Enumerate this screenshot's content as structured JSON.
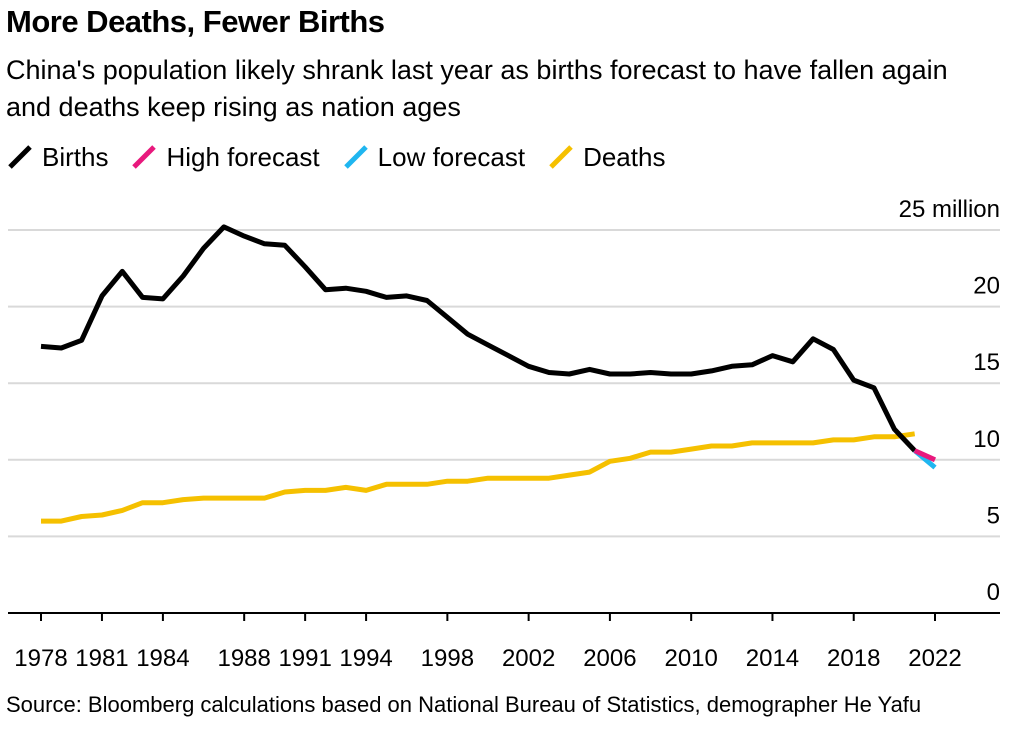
{
  "title": "More Deaths, Fewer Births",
  "subtitle": "China's population likely shrank last year as births forecast to have fallen again and deaths keep rising as nation ages",
  "source": "Source: Bloomberg calculations based on National Bureau of Statistics, demographer He Yafu",
  "legend": [
    {
      "label": "Births",
      "color": "#000000"
    },
    {
      "label": "High forecast",
      "color": "#e8197d"
    },
    {
      "label": "Low forecast",
      "color": "#1fb6f0"
    },
    {
      "label": "Deaths",
      "color": "#f5c000"
    }
  ],
  "chart_data": {
    "type": "line",
    "title": "More Deaths, Fewer Births",
    "ylabel": "",
    "xlabel": "",
    "ylim": [
      0,
      25
    ],
    "xlim": [
      1978,
      2022
    ],
    "y_ticks": [
      0,
      5,
      10,
      15,
      20,
      25
    ],
    "y_tick_labels": [
      "0",
      "5",
      "10",
      "15",
      "20",
      "25 million"
    ],
    "x_ticks": [
      1978,
      1981,
      1984,
      1988,
      1991,
      1994,
      1998,
      2002,
      2006,
      2010,
      2014,
      2018,
      2022
    ],
    "x_tick_labels": [
      "1978",
      "1981",
      "1984",
      "1988",
      "1991",
      "1994",
      "1998",
      "2002",
      "2006",
      "2010",
      "2014",
      "2018",
      "2022"
    ],
    "grid": "horizontal",
    "legend_position": "top-left",
    "series": [
      {
        "name": "Births",
        "color": "#000000",
        "x": [
          1978,
          1979,
          1980,
          1981,
          1982,
          1983,
          1984,
          1985,
          1986,
          1987,
          1988,
          1989,
          1990,
          1991,
          1992,
          1993,
          1994,
          1995,
          1996,
          1997,
          1998,
          1999,
          2000,
          2001,
          2002,
          2003,
          2004,
          2005,
          2006,
          2007,
          2008,
          2009,
          2010,
          2011,
          2012,
          2013,
          2014,
          2015,
          2016,
          2017,
          2018,
          2019,
          2020,
          2021
        ],
        "values": [
          17.4,
          17.3,
          17.8,
          20.7,
          22.3,
          20.6,
          20.5,
          22.0,
          23.8,
          25.2,
          24.6,
          24.1,
          24.0,
          22.6,
          21.1,
          21.2,
          21.0,
          20.6,
          20.7,
          20.4,
          19.3,
          18.2,
          17.5,
          16.8,
          16.1,
          15.7,
          15.6,
          15.9,
          15.6,
          15.6,
          15.7,
          15.6,
          15.6,
          15.8,
          16.1,
          16.2,
          16.8,
          16.4,
          17.9,
          17.2,
          15.2,
          14.7,
          12.0,
          10.6
        ]
      },
      {
        "name": "High forecast",
        "color": "#e8197d",
        "x": [
          2021,
          2022
        ],
        "values": [
          10.6,
          10.0
        ]
      },
      {
        "name": "Low forecast",
        "color": "#1fb6f0",
        "x": [
          2021,
          2022
        ],
        "values": [
          10.6,
          9.5
        ]
      },
      {
        "name": "Deaths",
        "color": "#f5c000",
        "x": [
          1978,
          1979,
          1980,
          1981,
          1982,
          1983,
          1984,
          1985,
          1986,
          1987,
          1988,
          1989,
          1990,
          1991,
          1992,
          1993,
          1994,
          1995,
          1996,
          1997,
          1998,
          1999,
          2000,
          2001,
          2002,
          2003,
          2004,
          2005,
          2006,
          2007,
          2008,
          2009,
          2010,
          2011,
          2012,
          2013,
          2014,
          2015,
          2016,
          2017,
          2018,
          2019,
          2020,
          2021
        ],
        "values": [
          6.0,
          6.0,
          6.3,
          6.4,
          6.7,
          7.2,
          7.2,
          7.4,
          7.5,
          7.5,
          7.5,
          7.5,
          7.9,
          8.0,
          8.0,
          8.2,
          8.0,
          8.4,
          8.4,
          8.4,
          8.6,
          8.6,
          8.8,
          8.8,
          8.8,
          8.8,
          9.0,
          9.2,
          9.9,
          10.1,
          10.5,
          10.5,
          10.7,
          10.9,
          10.9,
          11.1,
          11.1,
          11.1,
          11.1,
          11.3,
          11.3,
          11.5,
          11.5,
          11.7
        ]
      }
    ]
  }
}
